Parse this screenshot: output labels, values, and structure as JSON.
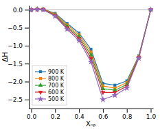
{
  "chart_data": {
    "type": "line",
    "title": "",
    "xlabel": "Xₙₚ",
    "ylabel": "ΔH",
    "x": [
      0.0,
      0.05,
      0.1,
      0.2,
      0.3,
      0.4,
      0.5,
      0.6,
      0.7,
      0.8,
      0.9,
      1.0
    ],
    "xlim": [
      -0.02,
      1.02
    ],
    "ylim": [
      -2.75,
      0.12
    ],
    "xticks": [
      {
        "value": 0.0,
        "label": "0.0"
      },
      {
        "value": 0.2,
        "label": "0.2"
      },
      {
        "value": 0.4,
        "label": "0.4"
      },
      {
        "value": 0.6,
        "label": "0.6"
      },
      {
        "value": 0.8,
        "label": "0.8"
      },
      {
        "value": 1.0,
        "label": "1.0"
      }
    ],
    "yticks": [
      {
        "value": 0.0,
        "label": "0.0"
      },
      {
        "value": -0.5,
        "label": "−0.5"
      },
      {
        "value": -1.0,
        "label": "−1.0"
      },
      {
        "value": -1.5,
        "label": "−1.5"
      },
      {
        "value": -2.0,
        "label": "−2.0"
      },
      {
        "value": -2.5,
        "label": "−2.5"
      }
    ],
    "grid": false,
    "legend": "lower left",
    "series": [
      {
        "name": "900 K",
        "marker": "square",
        "values": [
          0.0,
          0.02,
          0.02,
          -0.1,
          -0.38,
          -0.65,
          -1.1,
          -2.05,
          -2.1,
          -1.98,
          -1.28,
          0.0
        ]
      },
      {
        "name": "800 K",
        "marker": "square",
        "values": [
          0.0,
          0.02,
          0.02,
          -0.12,
          -0.42,
          -0.7,
          -1.18,
          -2.12,
          -2.18,
          -2.03,
          -1.3,
          0.0
        ]
      },
      {
        "name": "700 K",
        "marker": "triangle-up",
        "values": [
          0.0,
          0.02,
          0.01,
          -0.14,
          -0.46,
          -0.75,
          -1.26,
          -2.2,
          -2.24,
          -2.08,
          -1.32,
          0.0
        ]
      },
      {
        "name": "600 K",
        "marker": "triangle-down",
        "values": [
          0.0,
          0.01,
          0.01,
          -0.16,
          -0.5,
          -0.8,
          -1.35,
          -2.3,
          -2.3,
          -2.13,
          -1.33,
          0.0
        ]
      },
      {
        "name": "500 K",
        "marker": "star",
        "values": [
          0.0,
          0.01,
          0.0,
          -0.18,
          -0.54,
          -0.86,
          -1.45,
          -2.5,
          -2.38,
          -2.18,
          -1.35,
          0.0
        ]
      }
    ]
  }
}
